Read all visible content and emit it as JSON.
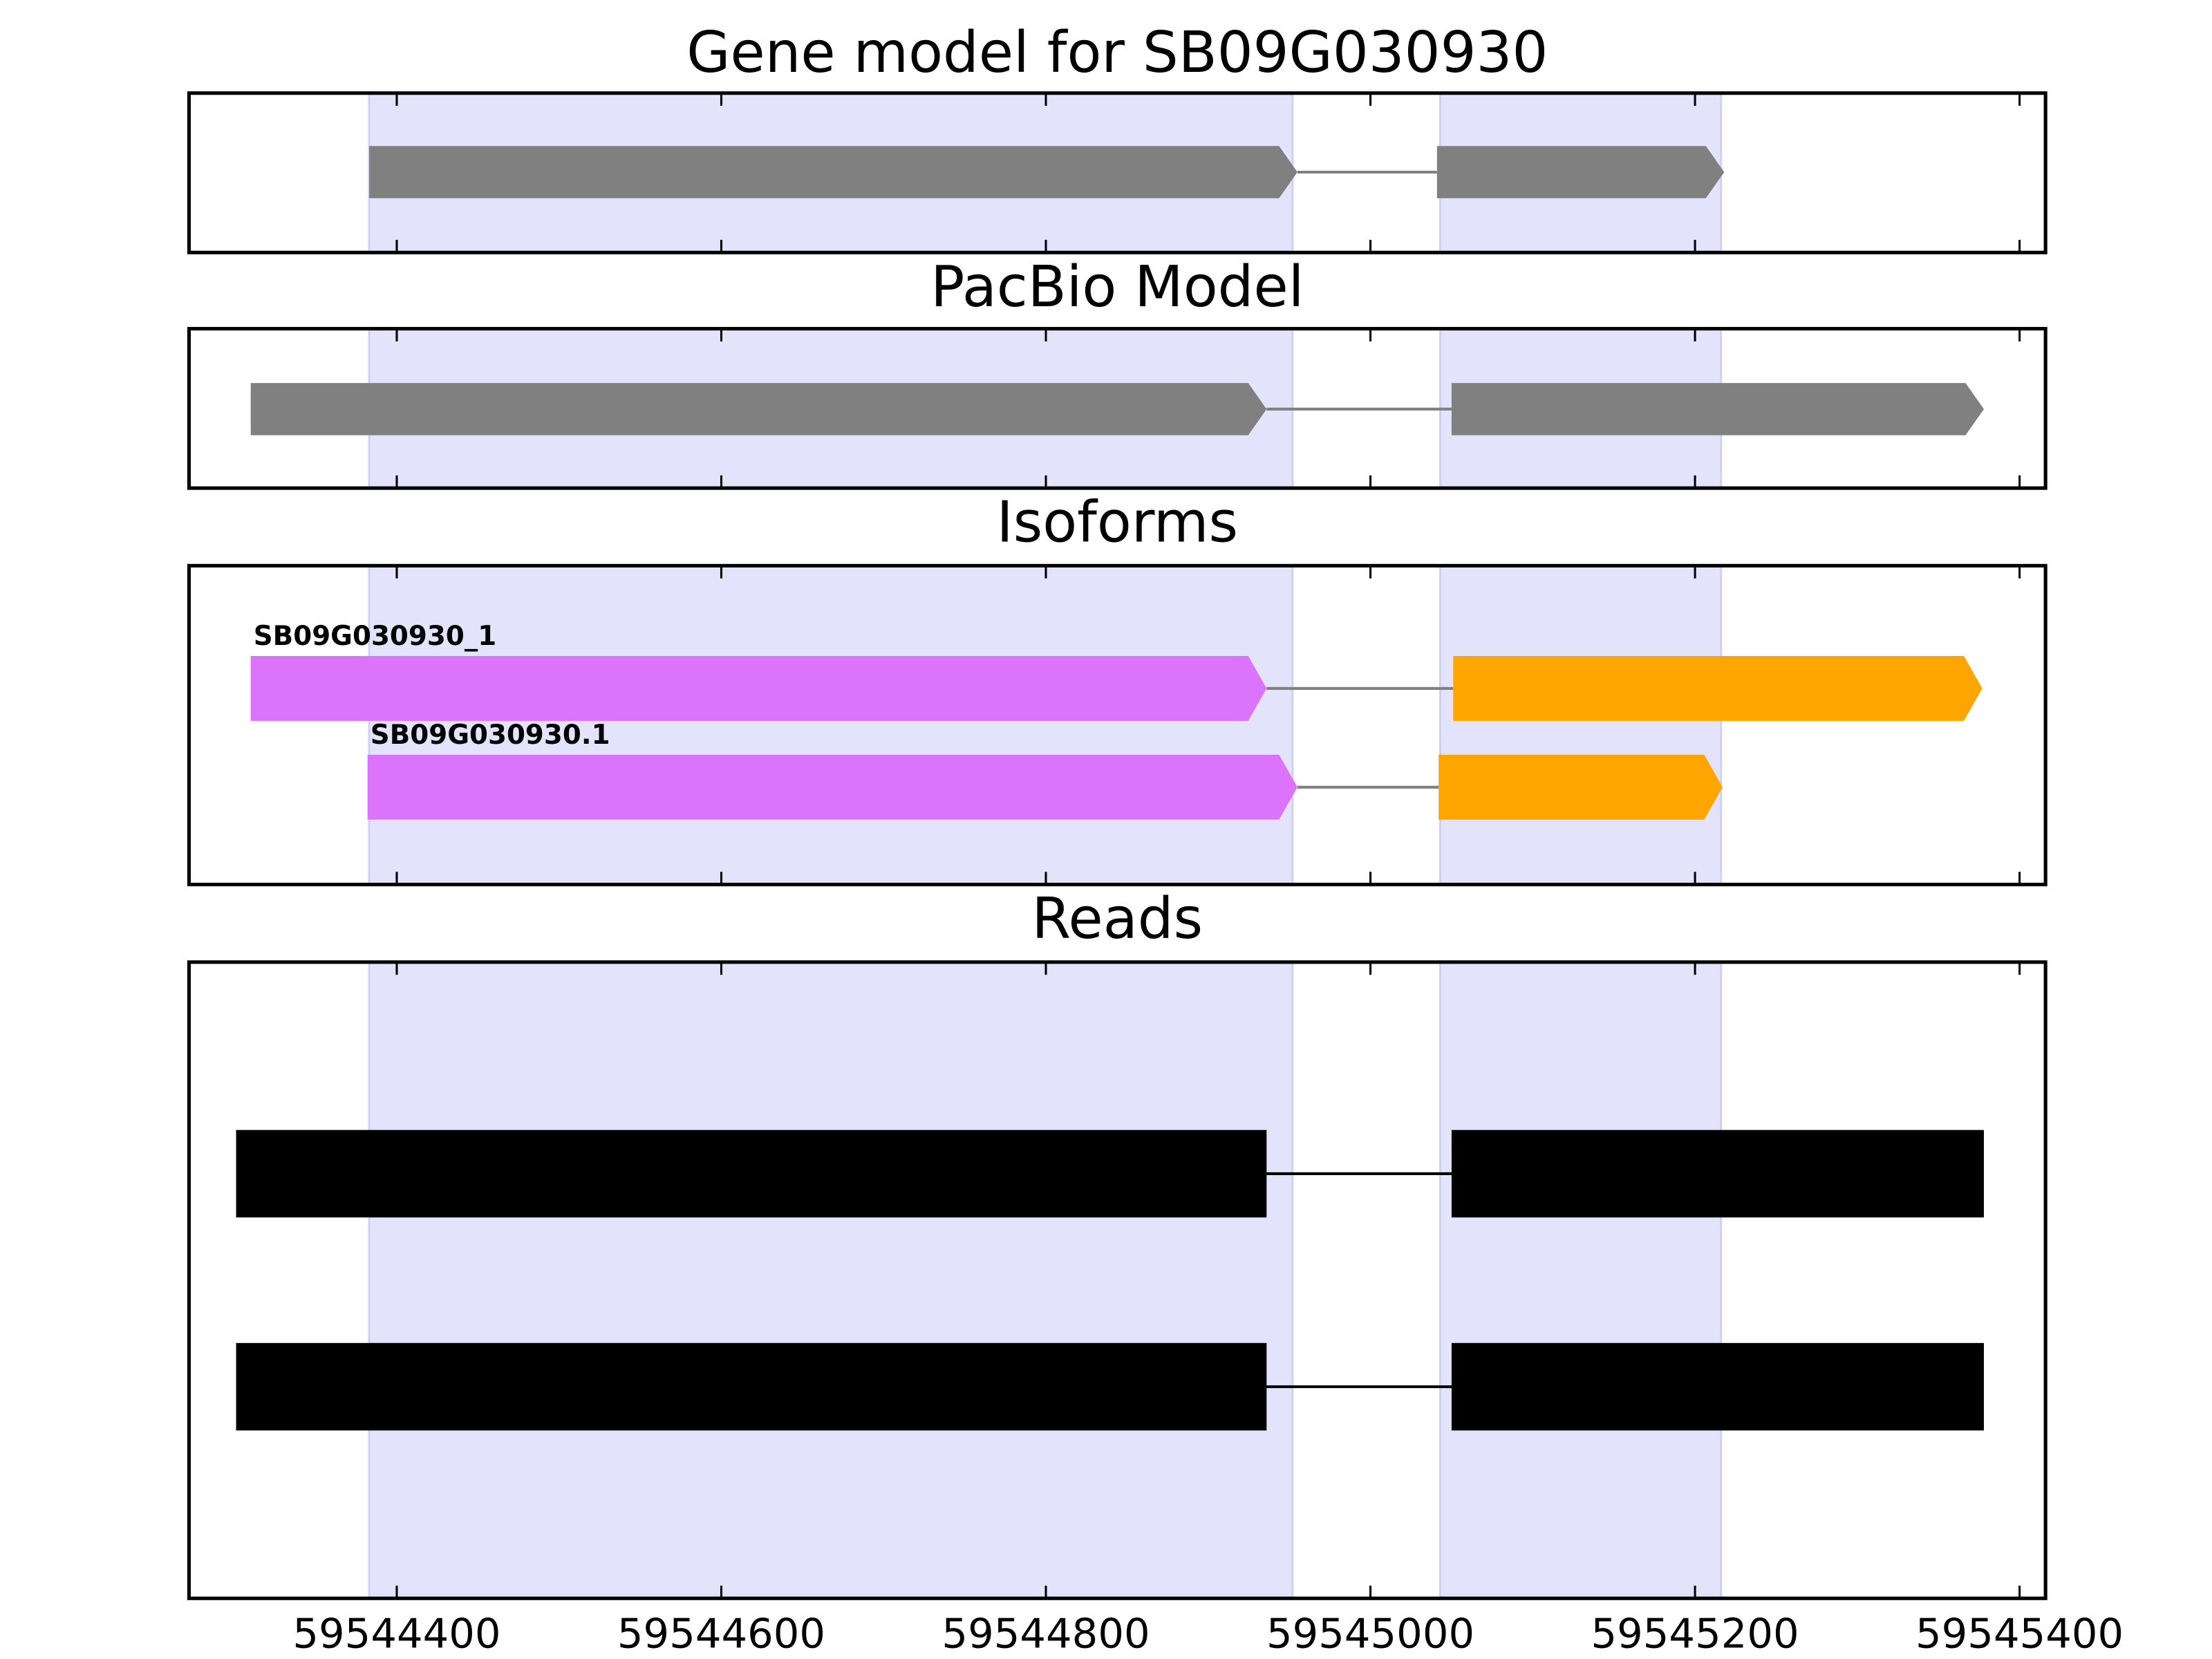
{
  "chart_data": [
    {
      "type": "gene",
      "title": "Gene model for SB09G030930",
      "xlim": [
        59544272,
        59545416
      ],
      "xticks": [
        59544400,
        59544600,
        59544800,
        59545000,
        59545200,
        59545400
      ],
      "show_xtick_labels": false,
      "highlights": [
        [
          59544383,
          59544952
        ],
        [
          59545043,
          59545216
        ]
      ],
      "arrows": true,
      "intron_color": "#808080",
      "transcripts": [
        {
          "exons": [
            [
              59544383,
              59544955
            ],
            [
              59545041,
              59545218
            ]
          ],
          "exon_colors": [
            "#808080",
            "#808080"
          ]
        }
      ]
    },
    {
      "type": "gene",
      "title": "PacBio Model",
      "xlim": [
        59544272,
        59545416
      ],
      "xticks": [
        59544400,
        59544600,
        59544800,
        59545000,
        59545200,
        59545400
      ],
      "show_xtick_labels": false,
      "highlights": [
        [
          59544383,
          59544952
        ],
        [
          59545043,
          59545216
        ]
      ],
      "arrows": true,
      "intron_color": "#808080",
      "transcripts": [
        {
          "exons": [
            [
              59544310,
              59544936
            ],
            [
              59545050,
              59545378
            ]
          ],
          "exon_colors": [
            "#808080",
            "#808080"
          ]
        }
      ]
    },
    {
      "type": "gene",
      "title": "Isoforms",
      "xlim": [
        59544272,
        59545416
      ],
      "xticks": [
        59544400,
        59544600,
        59544800,
        59545000,
        59545200,
        59545400
      ],
      "show_xtick_labels": false,
      "highlights": [
        [
          59544383,
          59544952
        ],
        [
          59545043,
          59545216
        ]
      ],
      "arrows": true,
      "intron_color": "#808080",
      "transcripts": [
        {
          "name": "SB09G030930_1",
          "exons": [
            [
              59544310,
              59544936
            ],
            [
              59545051,
              59545377
            ]
          ],
          "exon_colors": [
            "#dc74fb",
            "#ffa500"
          ]
        },
        {
          "name": "SB09G030930.1",
          "exons": [
            [
              59544382,
              59544955
            ],
            [
              59545042,
              59545217
            ]
          ],
          "exon_colors": [
            "#dc74fb",
            "#ffa500"
          ]
        }
      ]
    },
    {
      "type": "gene",
      "title": "Reads",
      "xlim": [
        59544272,
        59545416
      ],
      "xticks": [
        59544400,
        59544600,
        59544800,
        59545000,
        59545200,
        59545400
      ],
      "show_xtick_labels": true,
      "highlights": [
        [
          59544383,
          59544952
        ],
        [
          59545043,
          59545216
        ]
      ],
      "arrows": false,
      "intron_color": "#000000",
      "transcripts": [
        {
          "exons": [
            [
              59544301,
              59544936
            ],
            [
              59545050,
              59545378
            ]
          ],
          "exon_colors": [
            "#000000",
            "#000000"
          ]
        },
        {
          "exons": [
            [
              59544301,
              59544936
            ],
            [
              59545050,
              59545378
            ]
          ],
          "exon_colors": [
            "#000000",
            "#000000"
          ]
        }
      ]
    }
  ]
}
